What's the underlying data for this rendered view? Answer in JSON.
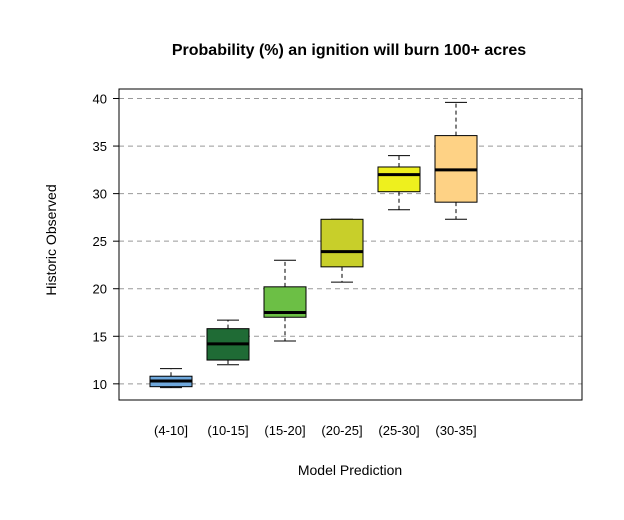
{
  "chart_data": {
    "type": "boxplot",
    "title": "Probability (%) an ignition will burn 100+ acres",
    "xlabel": "Model Prediction",
    "ylabel": "Historic Observed",
    "ylim": [
      8.3,
      41
    ],
    "yticks": [
      10,
      15,
      20,
      25,
      30,
      35,
      40
    ],
    "grid": "horizontal dashed at y ticks",
    "categories": [
      "(4-10]",
      "(10-15]",
      "(15-20]",
      "(20-25]",
      "(25-30]",
      "(30-35]"
    ],
    "boxes": [
      {
        "category": "(4-10]",
        "min": 9.6,
        "q1": 9.7,
        "median": 10.3,
        "q3": 10.8,
        "max": 11.6,
        "color": "#6fa8dc"
      },
      {
        "category": "(10-15]",
        "min": 12.0,
        "q1": 12.5,
        "median": 14.2,
        "q3": 15.8,
        "max": 16.7,
        "color": "#1f6b35"
      },
      {
        "category": "(15-20]",
        "min": 14.5,
        "q1": 17.0,
        "median": 17.5,
        "q3": 20.2,
        "max": 23.0,
        "color": "#6cbf45"
      },
      {
        "category": "(20-25]",
        "min": 20.7,
        "q1": 22.3,
        "median": 23.9,
        "q3": 27.3,
        "max": 27.3,
        "color": "#c8cf2a"
      },
      {
        "category": "(25-30]",
        "min": 28.3,
        "q1": 30.2,
        "median": 32.0,
        "q3": 32.8,
        "max": 34.0,
        "color": "#eef01e"
      },
      {
        "category": "(30-35]",
        "min": 27.3,
        "q1": 29.1,
        "median": 32.5,
        "q3": 36.1,
        "max": 39.6,
        "color": "#fed285"
      }
    ]
  }
}
